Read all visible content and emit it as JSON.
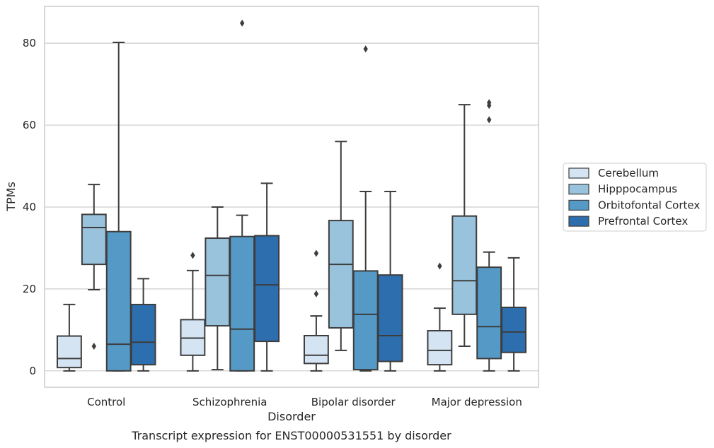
{
  "caption": "Transcript expression for ENST00000531551 by disorder",
  "chart_data": {
    "type": "boxplot",
    "title": "",
    "xlabel": "Disorder",
    "ylabel": "TPMs",
    "ylim": [
      -4,
      89
    ],
    "yticks": [
      0,
      20,
      40,
      60,
      80
    ],
    "categories": [
      "Control",
      "Schizophrenia",
      "Bipolar disorder",
      "Major depression"
    ],
    "grid": "horizontal",
    "legend_position": "right",
    "series": [
      {
        "name": "Cerebellum",
        "color": "#d4e4f3",
        "boxes": [
          {
            "whislo": 0,
            "q1": 0.8,
            "med": 3.0,
            "q3": 8.5,
            "whishi": 16.2,
            "fliers": []
          },
          {
            "whislo": 0,
            "q1": 3.8,
            "med": 8.0,
            "q3": 12.5,
            "whishi": 24.5,
            "fliers": [
              28.2
            ]
          },
          {
            "whislo": 0,
            "q1": 1.8,
            "med": 3.8,
            "q3": 8.6,
            "whishi": 13.4,
            "fliers": [
              18.8,
              28.7
            ]
          },
          {
            "whislo": 0,
            "q1": 1.5,
            "med": 5.0,
            "q3": 9.8,
            "whishi": 15.3,
            "fliers": [
              25.6
            ]
          }
        ]
      },
      {
        "name": "Hipppocampus",
        "color": "#99c2dd",
        "boxes": [
          {
            "whislo": 19.8,
            "q1": 26.0,
            "med": 35.0,
            "q3": 38.2,
            "whishi": 45.5,
            "fliers": [
              6.0
            ]
          },
          {
            "whislo": 0.3,
            "q1": 11.0,
            "med": 23.3,
            "q3": 32.4,
            "whishi": 40.0,
            "fliers": []
          },
          {
            "whislo": 5.0,
            "q1": 10.5,
            "med": 26.0,
            "q3": 36.7,
            "whishi": 56.0,
            "fliers": []
          },
          {
            "whislo": 6.0,
            "q1": 13.8,
            "med": 22.0,
            "q3": 37.8,
            "whishi": 65.0,
            "fliers": []
          }
        ]
      },
      {
        "name": "Orbitofontal Cortex",
        "color": "#5599c7",
        "boxes": [
          {
            "whislo": 0,
            "q1": 0,
            "med": 6.5,
            "q3": 34.0,
            "whishi": 80.2,
            "fliers": []
          },
          {
            "whislo": 0,
            "q1": 0,
            "med": 10.2,
            "q3": 32.8,
            "whishi": 38.0,
            "fliers": [
              84.9
            ]
          },
          {
            "whislo": 0,
            "q1": 0.3,
            "med": 13.8,
            "q3": 24.4,
            "whishi": 43.8,
            "fliers": [
              78.6
            ]
          },
          {
            "whislo": 0,
            "q1": 3.0,
            "med": 10.8,
            "q3": 25.3,
            "whishi": 29.0,
            "fliers": [
              61.3,
              64.8,
              65.5
            ]
          }
        ]
      },
      {
        "name": "Prefrontal Cortex",
        "color": "#2d6eae",
        "boxes": [
          {
            "whislo": 0,
            "q1": 1.5,
            "med": 7.0,
            "q3": 16.2,
            "whishi": 22.5,
            "fliers": []
          },
          {
            "whislo": 0,
            "q1": 7.2,
            "med": 21.0,
            "q3": 33.0,
            "whishi": 45.8,
            "fliers": []
          },
          {
            "whislo": 0,
            "q1": 2.3,
            "med": 8.6,
            "q3": 23.4,
            "whishi": 43.8,
            "fliers": []
          },
          {
            "whislo": 0,
            "q1": 4.5,
            "med": 9.5,
            "q3": 15.5,
            "whishi": 27.6,
            "fliers": []
          }
        ]
      }
    ]
  }
}
